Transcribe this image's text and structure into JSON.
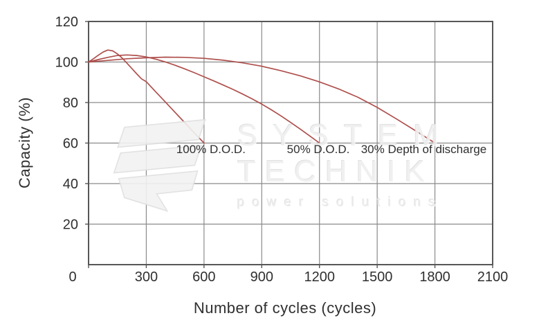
{
  "colors": {
    "background": "#ffffff",
    "curve": "#ae4f4c",
    "grid": "#8a8a8a",
    "border": "#565656",
    "text": "#2f2f2f",
    "watermark": "#efefef"
  },
  "watermark": {
    "line1": "SYSTEM",
    "line2": "TECHNIK",
    "line3": "power solutions",
    "logo_icon": "system-technik-flag-logo"
  },
  "chart_data": {
    "type": "line",
    "title": "",
    "xlabel": "Number of cycles (cycles)",
    "ylabel": "Capacity (%)",
    "xlim": [
      0,
      2100
    ],
    "ylim": [
      0,
      120
    ],
    "x_ticks": [
      0,
      300,
      600,
      900,
      1200,
      1500,
      1800,
      2100
    ],
    "y_ticks": [
      0,
      20,
      40,
      60,
      80,
      100,
      120
    ],
    "grid": true,
    "legend": "none",
    "series": [
      {
        "name": "100% D.O.D.",
        "color": "#ae4f4c",
        "points": [
          [
            0,
            100
          ],
          [
            25,
            101.6
          ],
          [
            50,
            103.3
          ],
          [
            75,
            104.9
          ],
          [
            100,
            105.9
          ],
          [
            125,
            105.5
          ],
          [
            150,
            104
          ],
          [
            175,
            101.9
          ],
          [
            200,
            99.4
          ],
          [
            225,
            96.8
          ],
          [
            250,
            94.2
          ],
          [
            275,
            91.7
          ],
          [
            300,
            90.3
          ],
          [
            350,
            85.2
          ],
          [
            400,
            80.2
          ],
          [
            450,
            75.1
          ],
          [
            500,
            70.1
          ],
          [
            550,
            65
          ],
          [
            600,
            60
          ]
        ]
      },
      {
        "name": "50% D.O.D.",
        "color": "#ae4f4c",
        "points": [
          [
            0,
            100
          ],
          [
            50,
            101.2
          ],
          [
            100,
            102.3
          ],
          [
            150,
            103.2
          ],
          [
            200,
            103.5
          ],
          [
            250,
            103.2
          ],
          [
            300,
            102.5
          ],
          [
            350,
            101.4
          ],
          [
            400,
            100
          ],
          [
            450,
            98.4
          ],
          [
            500,
            96.6
          ],
          [
            550,
            94.7
          ],
          [
            600,
            92.7
          ],
          [
            650,
            90.7
          ],
          [
            700,
            88.6
          ],
          [
            750,
            86.5
          ],
          [
            800,
            84.2
          ],
          [
            850,
            81.8
          ],
          [
            900,
            79.2
          ],
          [
            950,
            76.4
          ],
          [
            1000,
            73.4
          ],
          [
            1050,
            70.2
          ],
          [
            1100,
            66.9
          ],
          [
            1150,
            63.5
          ],
          [
            1200,
            60
          ]
        ]
      },
      {
        "name": "30% Depth of discharge",
        "color": "#ae4f4c",
        "points": [
          [
            0,
            100
          ],
          [
            100,
            100.8
          ],
          [
            200,
            101.6
          ],
          [
            300,
            102.1
          ],
          [
            400,
            102.4
          ],
          [
            500,
            102.3
          ],
          [
            600,
            101.8
          ],
          [
            700,
            100.9
          ],
          [
            800,
            99.6
          ],
          [
            900,
            97.9
          ],
          [
            1000,
            95.7
          ],
          [
            1100,
            93.2
          ],
          [
            1200,
            90.2
          ],
          [
            1300,
            86.7
          ],
          [
            1400,
            82.6
          ],
          [
            1500,
            77.6
          ],
          [
            1600,
            71.9
          ],
          [
            1700,
            66
          ],
          [
            1800,
            60
          ]
        ]
      }
    ],
    "annotations": [
      {
        "text": "100% D.O.D.",
        "x": 636,
        "y": 56.6
      },
      {
        "text": "50% D.O.D.",
        "x": 1194,
        "y": 56.6
      },
      {
        "text": "30% Depth of discharge",
        "x": 1742,
        "y": 56.6
      }
    ]
  }
}
